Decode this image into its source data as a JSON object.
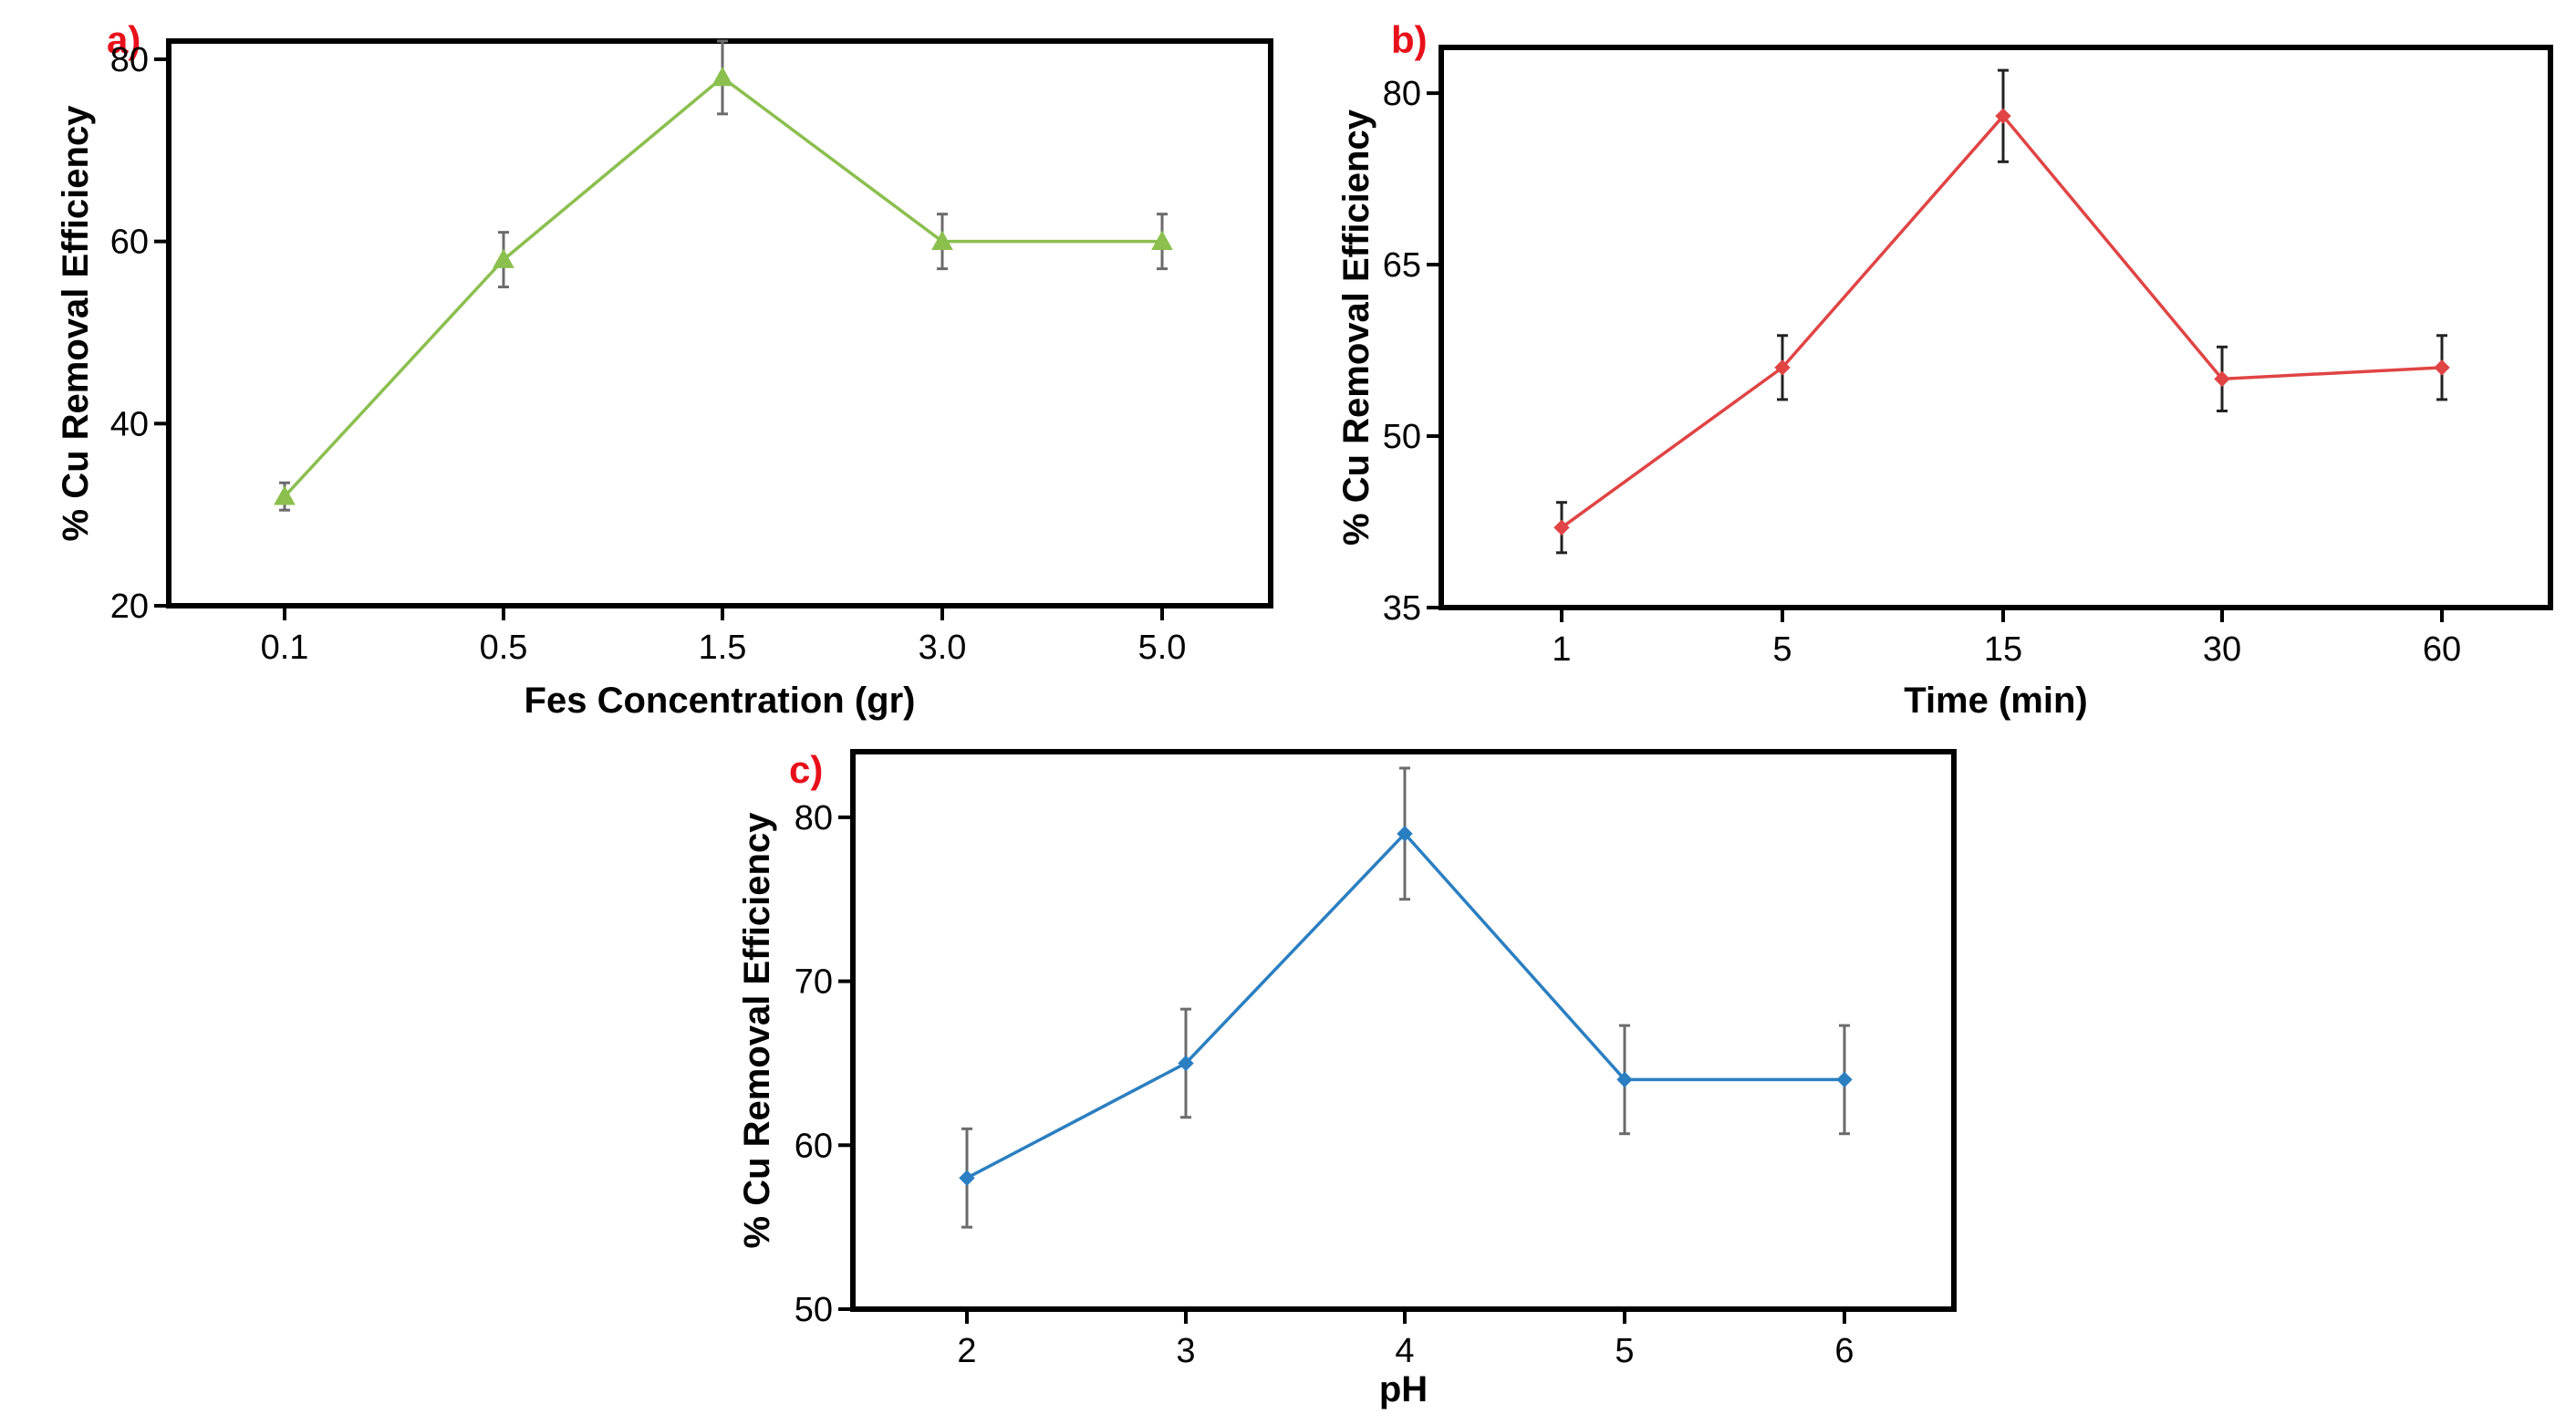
{
  "figure": {
    "panels": [
      "a",
      "b",
      "c"
    ]
  },
  "colors": {
    "a": "#8bbf4e",
    "b": "#e04444",
    "c": "#2a7fc1",
    "label": "#e8101a",
    "errorbar_a": "#6b6b6b",
    "errorbar_b": "#222222",
    "errorbar_c": "#6b6b6b"
  },
  "chart_data": [
    {
      "id": "a",
      "label": "a)",
      "type": "line",
      "marker": "triangle",
      "categories": [
        "0.1",
        "0.5",
        "1.5",
        "3.0",
        "5.0"
      ],
      "values": [
        32,
        58,
        78,
        60,
        60
      ],
      "errors": [
        1.5,
        3,
        4,
        3,
        3
      ],
      "xlabel": "Fes Concentration (gr)",
      "ylabel": "% Cu Removal Efficiency",
      "ylim": [
        20,
        82
      ],
      "yticks": [
        20,
        40,
        60,
        80
      ]
    },
    {
      "id": "b",
      "label": "b)",
      "type": "line",
      "marker": "diamond",
      "categories": [
        "1",
        "5",
        "15",
        "30",
        "60"
      ],
      "values": [
        42,
        56,
        78,
        55,
        56
      ],
      "errors": [
        2.2,
        2.8,
        4,
        2.8,
        2.8
      ],
      "xlabel": "Time (min)",
      "ylabel": "% Cu Removal Efficiency",
      "ylim": [
        35,
        84
      ],
      "yticks": [
        35,
        50,
        65,
        80
      ]
    },
    {
      "id": "c",
      "label": "c)",
      "type": "line",
      "marker": "diamond",
      "categories": [
        "2",
        "3",
        "4",
        "5",
        "6"
      ],
      "values": [
        58,
        65,
        79,
        64,
        64
      ],
      "errors": [
        3,
        3.3,
        4,
        3.3,
        3.3
      ],
      "xlabel": "pH",
      "ylabel": "% Cu Removal Efficiency",
      "ylim": [
        50,
        84
      ],
      "yticks": [
        50,
        60,
        70,
        80
      ]
    }
  ]
}
